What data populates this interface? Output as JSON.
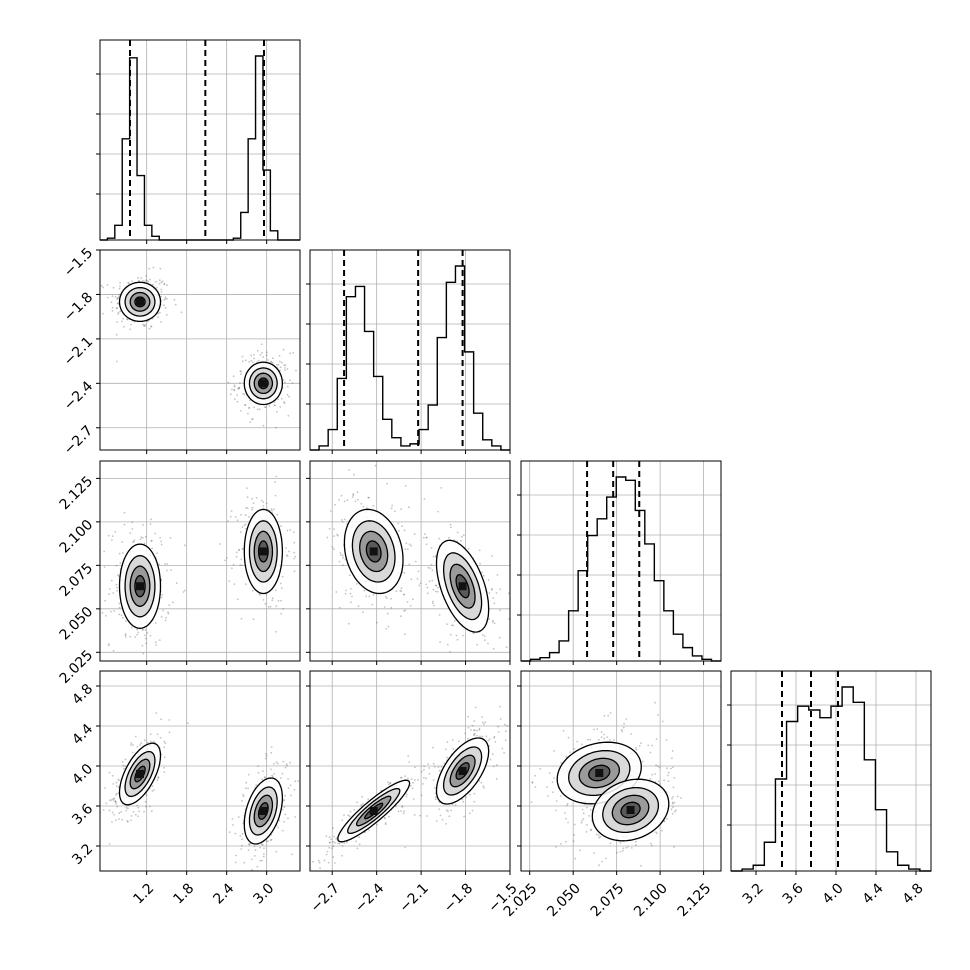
{
  "chart_data": {
    "type": "corner",
    "title": "",
    "variables": [
      {
        "label": "",
        "range": [
          0.5,
          3.5
        ],
        "ticks": [
          "1.2",
          "1.8",
          "2.4",
          "3.0"
        ],
        "tick_values": [
          1.2,
          1.8,
          2.4,
          3.0
        ]
      },
      {
        "label": "",
        "range": [
          -2.85,
          -1.5
        ],
        "ticks": [
          "−2.7",
          "−2.4",
          "−2.1",
          "−1.8",
          "−1.5"
        ],
        "tick_values": [
          -2.7,
          -2.4,
          -2.1,
          -1.8,
          -1.5
        ]
      },
      {
        "label": "",
        "range": [
          2.02,
          2.135
        ],
        "ticks": [
          "2.025",
          "2.050",
          "2.075",
          "2.100",
          "2.125"
        ],
        "tick_values": [
          2.025,
          2.05,
          2.075,
          2.1,
          2.125
        ]
      },
      {
        "label": "",
        "range": [
          2.95,
          4.95
        ],
        "ticks": [
          "3.2",
          "3.6",
          "4.0",
          "4.4",
          "4.8"
        ],
        "tick_values": [
          3.2,
          3.6,
          4.0,
          4.4,
          4.8
        ]
      }
    ],
    "grid": true,
    "histograms": [
      {
        "variable": 0,
        "edges_range": [
          0.5,
          3.5
        ],
        "counts": [
          0,
          1,
          8,
          55,
          99,
          35,
          8,
          2,
          0,
          0,
          0,
          0,
          0,
          0,
          0,
          0,
          0,
          0,
          1,
          15,
          55,
          100,
          38,
          5,
          0,
          0,
          0
        ],
        "quantile_lines": [
          0.95,
          2.08,
          2.96
        ]
      },
      {
        "variable": 1,
        "edges_range": [
          -2.85,
          -1.5
        ],
        "counts": [
          0,
          2,
          10,
          35,
          75,
          80,
          58,
          36,
          15,
          6,
          2,
          3,
          10,
          22,
          55,
          82,
          90,
          48,
          18,
          5,
          2,
          0
        ],
        "quantile_lines": [
          -2.62,
          -2.12,
          -1.82
        ]
      },
      {
        "variable": 2,
        "edges_range": [
          2.02,
          2.135
        ],
        "counts": [
          0,
          1,
          2,
          5,
          12,
          30,
          54,
          75,
          85,
          98,
          110,
          108,
          90,
          70,
          48,
          30,
          16,
          8,
          3,
          1,
          0
        ],
        "quantile_lines": [
          2.058,
          2.073,
          2.088
        ]
      },
      {
        "variable": 3,
        "edges_range": [
          2.95,
          4.95
        ],
        "counts": [
          0,
          1,
          3,
          15,
          48,
          78,
          86,
          84,
          80,
          86,
          96,
          88,
          58,
          32,
          10,
          3,
          1,
          0
        ],
        "quantile_lines": [
          3.46,
          3.75,
          4.02
        ]
      }
    ],
    "contour_panels": [
      {
        "x": 0,
        "y": 1,
        "modes": [
          {
            "cx": 1.1,
            "cy": -1.85,
            "sx": 0.14,
            "sy": 0.06,
            "rho": 0.0
          },
          {
            "cx": 2.95,
            "cy": -2.4,
            "sx": 0.13,
            "sy": 0.065,
            "rho": 0.0
          }
        ]
      },
      {
        "x": 0,
        "y": 2,
        "modes": [
          {
            "cx": 1.1,
            "cy": 2.063,
            "sx": 0.14,
            "sy": 0.011,
            "rho": 0.0
          },
          {
            "cx": 2.95,
            "cy": 2.083,
            "sx": 0.13,
            "sy": 0.011,
            "rho": 0.0
          }
        ]
      },
      {
        "x": 0,
        "y": 3,
        "modes": [
          {
            "cx": 1.1,
            "cy": 3.92,
            "sx": 0.14,
            "sy": 0.14,
            "rho": 0.6
          },
          {
            "cx": 2.95,
            "cy": 3.55,
            "sx": 0.13,
            "sy": 0.15,
            "rho": 0.4
          }
        ]
      },
      {
        "x": 1,
        "y": 2,
        "modes": [
          {
            "cx": -2.42,
            "cy": 2.083,
            "sx": 0.09,
            "sy": 0.011,
            "rho": -0.2
          },
          {
            "cx": -1.82,
            "cy": 2.063,
            "sx": 0.08,
            "sy": 0.012,
            "rho": -0.5
          }
        ]
      },
      {
        "x": 1,
        "y": 3,
        "modes": [
          {
            "cx": -2.42,
            "cy": 3.55,
            "sx": 0.11,
            "sy": 0.14,
            "rho": 0.9
          },
          {
            "cx": -1.82,
            "cy": 3.95,
            "sx": 0.08,
            "sy": 0.15,
            "rho": 0.6
          }
        ]
      },
      {
        "x": 2,
        "y": 3,
        "modes": [
          {
            "cx": 2.065,
            "cy": 3.93,
            "sx": 0.011,
            "sy": 0.14,
            "rho": 0.2
          },
          {
            "cx": 2.083,
            "cy": 3.56,
            "sx": 0.01,
            "sy": 0.14,
            "rho": 0.2
          }
        ]
      }
    ]
  },
  "colors": {
    "data": "#000000",
    "grid": "#b0b0b0",
    "points": "#555555"
  }
}
